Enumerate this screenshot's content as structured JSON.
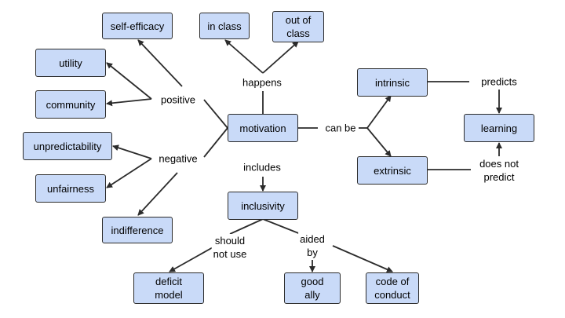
{
  "colors": {
    "node_fill": "#c9daf8",
    "stroke": "#2b2b2b",
    "background": "#ffffff"
  },
  "nodes": {
    "self_efficacy": "self-efficacy",
    "in_class": "in class",
    "out_of_class": "out of\nclass",
    "utility": "utility",
    "community": "community",
    "unpredictability": "unpredictability",
    "unfairness": "unfairness",
    "indifference": "indifference",
    "motivation": "motivation",
    "intrinsic": "intrinsic",
    "extrinsic": "extrinsic",
    "learning": "learning",
    "inclusivity": "inclusivity",
    "deficit_model": "deficit\nmodel",
    "good_ally": "good\nally",
    "code_of_conduct": "code of\nconduct"
  },
  "labels": {
    "positive": "positive",
    "negative": "negative",
    "happens": "happens",
    "includes": "includes",
    "can_be": "can be",
    "predicts": "predicts",
    "does_not_predict": "does not\npredict",
    "should_not_use": "should\nnot use",
    "aided_by": "aided\nby"
  }
}
